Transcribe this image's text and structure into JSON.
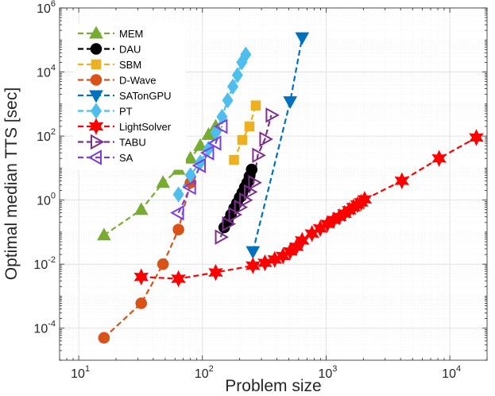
{
  "chart_data": {
    "type": "line",
    "xlabel": "Problem size",
    "ylabel": "Optimal median TTS [sec]",
    "xscale": "log",
    "yscale": "log",
    "xlim": [
      7,
      20000
    ],
    "ylim": [
      1e-05,
      1000000
    ],
    "x_ticks": [
      10,
      100,
      1000,
      10000
    ],
    "x_tick_labels": [
      {
        "base": "10",
        "exp": "1"
      },
      {
        "base": "10",
        "exp": "2"
      },
      {
        "base": "10",
        "exp": "3"
      },
      {
        "base": "10",
        "exp": "4"
      }
    ],
    "y_ticks": [
      0.0001,
      0.01,
      1,
      100,
      10000,
      1000000
    ],
    "y_tick_labels": [
      {
        "base": "10",
        "exp": "-4"
      },
      {
        "base": "10",
        "exp": "-2"
      },
      {
        "base": "10",
        "exp": "0"
      },
      {
        "base": "10",
        "exp": "2"
      },
      {
        "base": "10",
        "exp": "4"
      },
      {
        "base": "10",
        "exp": "6"
      }
    ],
    "grid": true,
    "legend_position": "top-left",
    "series": [
      {
        "name": "MEM",
        "color": "#77AC30",
        "marker": "triangle-up",
        "x": [
          16,
          32,
          48,
          64,
          80,
          96,
          112,
          128
        ],
        "y": [
          0.08,
          0.5,
          3.5,
          9,
          20,
          50,
          110,
          200
        ]
      },
      {
        "name": "DAU",
        "color": "#000000",
        "marker": "circle",
        "x": [
          150,
          160,
          170,
          180,
          190,
          200,
          210,
          220,
          230,
          240,
          250
        ],
        "y": [
          0.14,
          0.22,
          0.35,
          0.55,
          0.8,
          1.2,
          1.7,
          2.5,
          3.5,
          5.5,
          9
        ]
      },
      {
        "name": "SBM",
        "color": "#EDB120",
        "marker": "square",
        "x": [
          180,
          210,
          240,
          270
        ],
        "y": [
          18,
          75,
          200,
          900
        ]
      },
      {
        "name": "D-Wave",
        "color": "#D95319",
        "marker": "circle",
        "x": [
          16,
          32,
          48,
          64,
          80
        ],
        "y": [
          5e-05,
          0.0006,
          0.01,
          0.12,
          3.5
        ]
      },
      {
        "name": "SATonGPU",
        "color": "#0072BD",
        "marker": "triangle-down",
        "x": [
          256,
          512,
          640
        ],
        "y": [
          0.025,
          1200,
          120000
        ]
      },
      {
        "name": "PT",
        "color": "#4DBEEE",
        "marker": "diamond",
        "x": [
          64,
          80,
          96,
          112,
          128,
          144,
          160,
          176,
          192,
          208,
          224
        ],
        "y": [
          1.5,
          6,
          15,
          40,
          130,
          400,
          1300,
          3500,
          8000,
          20000,
          35000
        ]
      },
      {
        "name": "LightSolver",
        "color": "#FF0000",
        "marker": "hexagram",
        "x": [
          32,
          64,
          128,
          256,
          320,
          384,
          448,
          512,
          576,
          640,
          768,
          896,
          1024,
          1152,
          1280,
          1408,
          1536,
          1664,
          1792,
          1920,
          2048,
          4096,
          8192,
          16384
        ],
        "y": [
          0.004,
          0.0035,
          0.0055,
          0.009,
          0.011,
          0.014,
          0.018,
          0.025,
          0.035,
          0.055,
          0.09,
          0.13,
          0.18,
          0.24,
          0.3,
          0.38,
          0.48,
          0.6,
          0.72,
          0.85,
          1.05,
          4,
          20,
          90
        ]
      },
      {
        "name": "TABU",
        "color": "#7E2F8E",
        "marker": "triangle-right",
        "x": [
          140,
          160,
          180,
          200,
          220,
          240,
          260,
          280,
          320,
          360
        ],
        "y": [
          0.07,
          0.18,
          0.35,
          0.6,
          1.0,
          1.8,
          3.5,
          25,
          80,
          450
        ]
      },
      {
        "name": "SA",
        "color": "#7A3EE0",
        "marker": "triangle-left",
        "x": [
          64,
          80,
          96,
          112,
          128,
          144
        ],
        "y": [
          0.4,
          2.5,
          12,
          30,
          60,
          200
        ]
      }
    ]
  }
}
